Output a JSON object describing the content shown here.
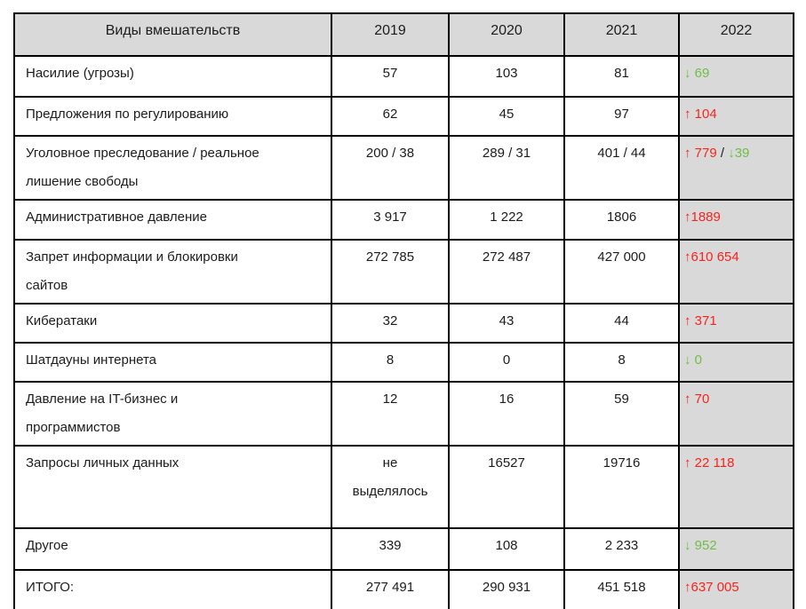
{
  "colors": {
    "red": "#f8231d",
    "green": "#6fbe45",
    "black": "#1c1c1c",
    "header_bg": "#d9d9d9",
    "border": "#000000"
  },
  "chart_data": {
    "type": "table",
    "title": "",
    "columns": [
      "Виды вмешательств",
      "2019",
      "2020",
      "2021",
      "2022"
    ],
    "rows": [
      {
        "label": "Насилие (угрозы)",
        "values": [
          "57",
          "103",
          "81"
        ],
        "change": [
          {
            "text": "↓ 69",
            "color": "green",
            "direction": "down"
          }
        ]
      },
      {
        "label": "Предложения по регулированию",
        "values": [
          "62",
          "45",
          "97"
        ],
        "change": [
          {
            "text": "↑ 104",
            "color": "red",
            "direction": "up"
          }
        ]
      },
      {
        "label": "Уголовное преследование / реальное\nлишение свободы",
        "values": [
          "200 / 38",
          "289 / 31",
          "401 / 44"
        ],
        "change": [
          {
            "text": "↑ 779",
            "color": "red",
            "direction": "up"
          },
          {
            "text": " / ",
            "color": "black",
            "direction": "none"
          },
          {
            "text": "↓39",
            "color": "green",
            "direction": "down"
          }
        ]
      },
      {
        "label": "Административное давление",
        "values": [
          "3 917",
          "1 222",
          "1806"
        ],
        "change": [
          {
            "text": "↑1889",
            "color": "red",
            "direction": "up"
          }
        ]
      },
      {
        "label": "Запрет информации и блокировки\nсайтов",
        "values": [
          "272 785",
          "272 487",
          "427 000"
        ],
        "change": [
          {
            "text": "↑610 654",
            "color": "red",
            "direction": "up"
          }
        ]
      },
      {
        "label": "Кибератаки",
        "values": [
          "32",
          "43",
          "44"
        ],
        "change": [
          {
            "text": "↑ 371",
            "color": "red",
            "direction": "up"
          }
        ]
      },
      {
        "label": "Шатдауны интернета",
        "values": [
          "8",
          "0",
          "8"
        ],
        "change": [
          {
            "text": "↓ 0",
            "color": "green",
            "direction": "down"
          }
        ]
      },
      {
        "label": "Давление на IT-бизнес и\nпрограммистов",
        "values": [
          "12",
          "16",
          "59"
        ],
        "change": [
          {
            "text": "↑ 70",
            "color": "red",
            "direction": "up"
          }
        ]
      },
      {
        "label": "Запросы личных данных",
        "values": [
          "не\nвыделялось",
          "16527",
          "19716"
        ],
        "change": [
          {
            "text": "↑ 22 118",
            "color": "red",
            "direction": "up"
          }
        ]
      },
      {
        "label": "Другое",
        "values": [
          "339",
          "108",
          "2 233"
        ],
        "change": [
          {
            "text": "↓ 952",
            "color": "green",
            "direction": "down"
          }
        ]
      },
      {
        "label": "ИТОГО:",
        "values": [
          "277 491",
          "290 931",
          "451 518"
        ],
        "change": [
          {
            "text": "↑637 005",
            "color": "red",
            "direction": "up"
          }
        ]
      }
    ]
  }
}
